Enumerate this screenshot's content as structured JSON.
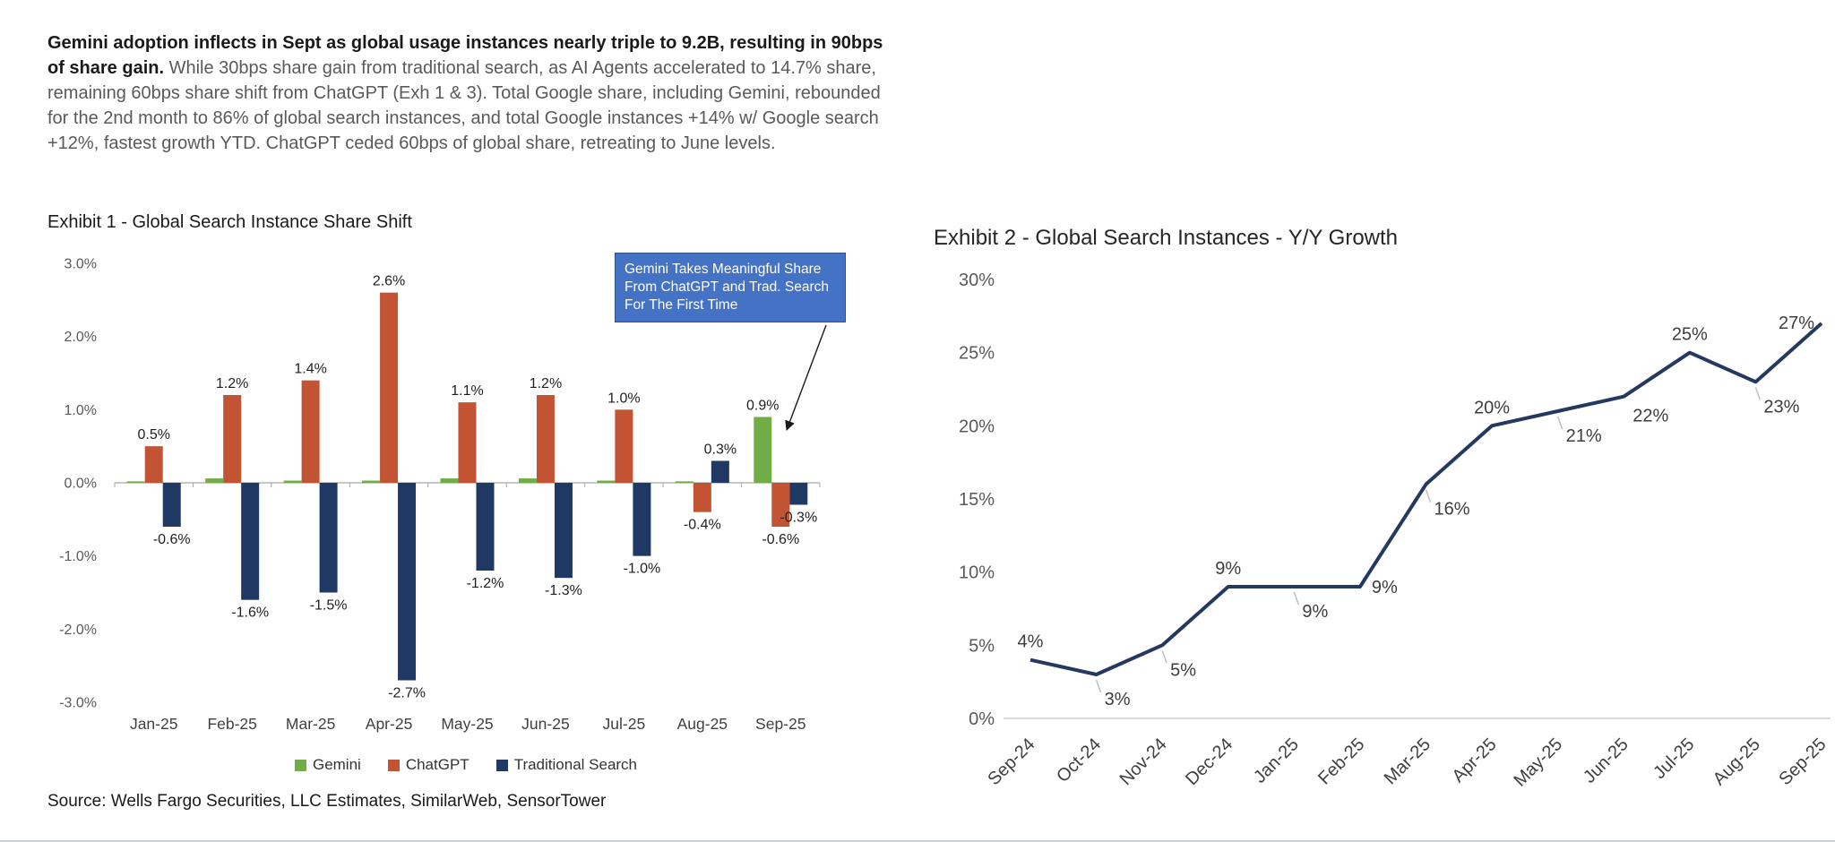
{
  "commentary": {
    "bold": "Gemini adoption inflects in Sept as global usage instances nearly triple to 9.2B, resulting in 90bps of share gain.",
    "regular": " While 30bps share gain from traditional search, as AI Agents accelerated to 14.7% share, remaining 60bps share shift from ChatGPT (Exh 1 & 3). Total Google share, including Gemini, rebounded for the 2nd month to 86% of global search instances, and total Google instances +14% w/ Google search +12%, fastest growth YTD. ChatGPT ceded 60bps of global share, retreating to June levels."
  },
  "exhibit1": {
    "title": "Exhibit 1 - Global Search Instance Share Shift",
    "source": "Source: Wells Fargo Securities, LLC Estimates, SimilarWeb, SensorTower"
  },
  "exhibit2": {
    "title": "Exhibit 2 - Global Search Instances - Y/Y Growth"
  },
  "chart_data": [
    {
      "type": "bar",
      "title": "Exhibit 1 - Global Search Instance Share Shift",
      "categories": [
        "Jan-25",
        "Feb-25",
        "Mar-25",
        "Apr-25",
        "May-25",
        "Jun-25",
        "Jul-25",
        "Aug-25",
        "Sep-25"
      ],
      "series": [
        {
          "name": "Gemini",
          "color": "#70AD47",
          "values": [
            0.02,
            0.06,
            0.03,
            0.03,
            0.06,
            0.06,
            0.03,
            0.02,
            0.9
          ],
          "labels": [
            "",
            "",
            "",
            "",
            "",
            "",
            "",
            "",
            "0.9%"
          ]
        },
        {
          "name": "ChatGPT",
          "color": "#C25434",
          "values": [
            0.5,
            1.2,
            1.4,
            2.6,
            1.1,
            1.2,
            1.0,
            -0.4,
            -0.6
          ],
          "labels": [
            "0.5%",
            "1.2%",
            "1.4%",
            "2.6%",
            "1.1%",
            "1.2%",
            "1.0%",
            "-0.4%",
            "-0.6%"
          ]
        },
        {
          "name": "Traditional Search",
          "color": "#1F3864",
          "values": [
            -0.6,
            -1.6,
            -1.5,
            -2.7,
            -1.2,
            -1.3,
            -1.0,
            0.3,
            -0.3
          ],
          "labels": [
            "-0.6%",
            "-1.6%",
            "-1.5%",
            "-2.7%",
            "-1.2%",
            "-1.3%",
            "-1.0%",
            "0.3%",
            "-0.3%"
          ]
        }
      ],
      "ylim": [
        -3,
        3
      ],
      "ytick_step": 1,
      "ytick_labels": [
        "3.0%",
        "2.0%",
        "1.0%",
        "0.0%",
        "-1.0%",
        "-2.0%",
        "-3.0%"
      ],
      "grid": false,
      "legend_position": "bottom",
      "annotation": {
        "text": "Gemini Takes Meaningful Share From ChatGPT and Trad. Search For The First Time",
        "fill": "#4472C4",
        "text_color": "#FFFFFF"
      }
    },
    {
      "type": "line",
      "title": "Exhibit 2 - Global Search Instances - Y/Y Growth",
      "categories": [
        "Sep-24",
        "Oct-24",
        "Nov-24",
        "Dec-24",
        "Jan-25",
        "Feb-25",
        "Mar-25",
        "Apr-25",
        "May-25",
        "Jun-25",
        "Jul-25",
        "Aug-25",
        "Sep-25"
      ],
      "values": [
        4,
        3,
        5,
        9,
        9,
        9,
        16,
        20,
        21,
        22,
        25,
        23,
        27
      ],
      "labels": [
        "4%",
        "3%",
        "5%",
        "9%",
        "9%",
        "9%",
        "16%",
        "20%",
        "21%",
        "22%",
        "25%",
        "23%",
        "27%"
      ],
      "label_pos": [
        "above",
        "below",
        "below",
        "above",
        "below",
        "right",
        "below",
        "above",
        "below",
        "below-right",
        "above",
        "below",
        "left"
      ],
      "ylim": [
        0,
        30
      ],
      "ytick_step": 5,
      "ytick_labels": [
        "0%",
        "5%",
        "10%",
        "15%",
        "20%",
        "25%",
        "30%"
      ],
      "line_color": "#24395F",
      "grid": false,
      "legend_position": "none"
    }
  ]
}
